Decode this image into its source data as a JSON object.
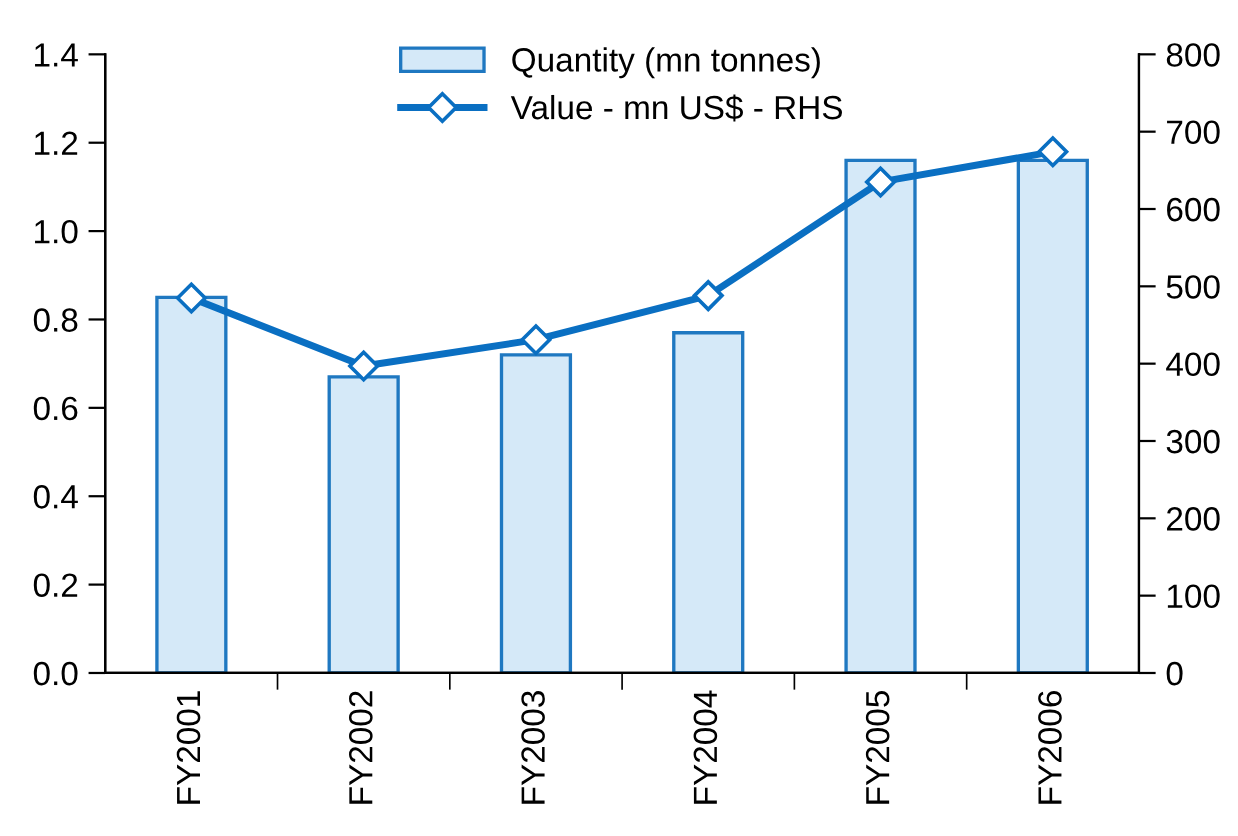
{
  "chart_data": {
    "type": "bar",
    "categories": [
      "FY2001",
      "FY2002",
      "FY2003",
      "FY2004",
      "FY2005",
      "FY2006"
    ],
    "series": [
      {
        "name": "Quantity (mn tonnes)",
        "color": "#d5e9f8",
        "values": [
          0.85,
          0.67,
          0.72,
          0.77,
          1.16,
          1.16
        ]
      },
      {
        "name": "Value - mn US$ - RHS",
        "type": "line",
        "axis": "y2",
        "color": "#0a6fc2",
        "values": [
          485,
          397,
          431,
          488,
          635,
          674
        ]
      }
    ],
    "ylim": [
      0,
      1.4
    ],
    "yticks": [
      {
        "value": 0,
        "label": "0.0"
      },
      {
        "value": 0.2,
        "label": "0.2"
      },
      {
        "value": 0.4,
        "label": "0.4"
      },
      {
        "value": 0.6,
        "label": "0.6"
      },
      {
        "value": 0.8,
        "label": "0.8"
      },
      {
        "value": 1.0,
        "label": "1.0"
      },
      {
        "value": 1.2,
        "label": "1.2"
      },
      {
        "value": 1.4,
        "label": "1.4"
      }
    ],
    "y2lim": [
      0,
      800
    ],
    "y2ticks": [
      0,
      100,
      200,
      300,
      400,
      500,
      600,
      700,
      800
    ],
    "marker": "diamond",
    "legend": "top",
    "grid": false
  }
}
